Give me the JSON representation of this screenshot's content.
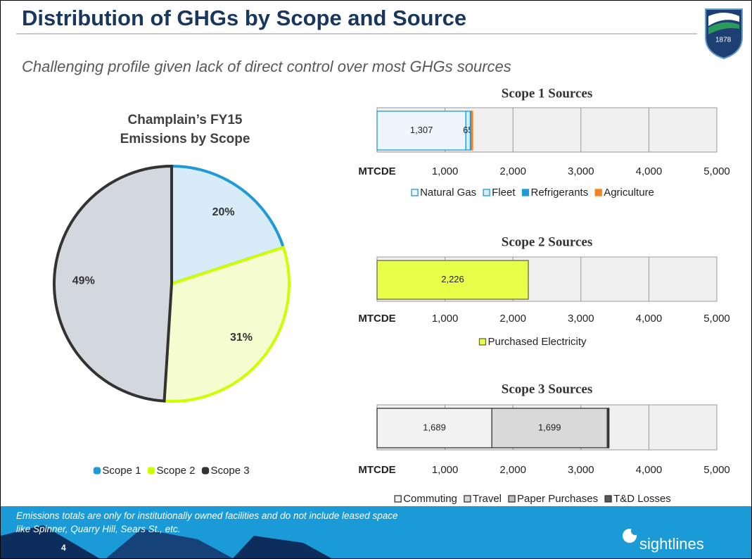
{
  "slide": {
    "title": "Distribution of GHGs by Scope and Source",
    "subtitle": "Challenging profile given lack of direct control over most GHGs sources",
    "footnote": "Emissions totals are only for institutionally owned facilities and do not include leased space like Spinner, Quarry Hill, Sears St., etc.",
    "page": "4",
    "brand": "sightlines",
    "logo_year": "1878"
  },
  "chart_data": [
    {
      "type": "pie",
      "title": "Champlain’s FY15 Emissions by Scope",
      "categories": [
        "Scope 1",
        "Scope 2",
        "Scope 3"
      ],
      "values": [
        20,
        31,
        49
      ],
      "value_labels": [
        "20%",
        "31%",
        "49%"
      ],
      "colors": [
        "#d7ecf8",
        "#f5fdd0",
        "#d3d8df"
      ],
      "edge_colors": [
        "#1e9ad6",
        "#ccff00",
        "#333333"
      ],
      "legend": "bottom"
    },
    {
      "type": "bar",
      "orientation": "horizontal",
      "stacked": true,
      "title": "Scope 1 Sources",
      "series": [
        {
          "name": "Natural Gas",
          "color": "#eef6fb",
          "edge": "#1e9ad6",
          "values": [
            1307
          ],
          "value_labels": [
            "1,307"
          ]
        },
        {
          "name": "Fleet",
          "color": "#d7ecf8",
          "edge": "#1e9ad6",
          "values": [
            65
          ],
          "labels": true
        },
        {
          "name": "Refrigerants",
          "color": "#1e9ad6",
          "edge": "#1e9ad6",
          "values": [
            20
          ]
        },
        {
          "name": "Agriculture",
          "color": "#f58220",
          "edge": "#f58220",
          "values": [
            15
          ]
        }
      ],
      "xlim": [
        0,
        5000
      ],
      "xticks": [
        {
          "value": 0,
          "label": "MTCDE"
        },
        {
          "value": 1000,
          "label": "1,000"
        },
        {
          "value": 2000,
          "label": "2,000"
        },
        {
          "value": 3000,
          "label": "3,000"
        },
        {
          "value": 4000,
          "label": "4,000"
        },
        {
          "value": 5000,
          "label": "5,000"
        }
      ],
      "grid": true,
      "legend": "bottom"
    },
    {
      "type": "bar",
      "orientation": "horizontal",
      "stacked": true,
      "title": "Scope 2 Sources",
      "series": [
        {
          "name": "Purchased Electricity",
          "color": "#e8ff4a",
          "edge": "#6b6b3a",
          "values": [
            2226
          ],
          "value_labels": [
            "2,226"
          ]
        }
      ],
      "xlim": [
        0,
        5000
      ],
      "xticks": [
        {
          "value": 0,
          "label": "MTCDE"
        },
        {
          "value": 1000,
          "label": "1,000"
        },
        {
          "value": 2000,
          "label": "2,000"
        },
        {
          "value": 3000,
          "label": "3,000"
        },
        {
          "value": 4000,
          "label": "4,000"
        },
        {
          "value": 5000,
          "label": "5,000"
        }
      ],
      "grid": true,
      "legend": "bottom"
    },
    {
      "type": "bar",
      "orientation": "horizontal",
      "stacked": true,
      "title": "Scope 3 Sources",
      "series": [
        {
          "name": "Commuting",
          "color": "#f2f2f2",
          "edge": "#333333",
          "values": [
            1689
          ],
          "value_labels": [
            "1,689"
          ]
        },
        {
          "name": "Travel",
          "color": "#d9d9d9",
          "edge": "#333333",
          "values": [
            1699
          ],
          "value_labels": [
            "1,699"
          ]
        },
        {
          "name": "Paper Purchases",
          "color": "#bfbfbf",
          "edge": "#333333",
          "values": [
            15
          ]
        },
        {
          "name": "T&D Losses",
          "color": "#595959",
          "edge": "#333333",
          "values": [
            10
          ]
        }
      ],
      "xlim": [
        0,
        5000
      ],
      "xticks": [
        {
          "value": 0,
          "label": "MTCDE"
        },
        {
          "value": 1000,
          "label": "1,000"
        },
        {
          "value": 2000,
          "label": "2,000"
        },
        {
          "value": 3000,
          "label": "3,000"
        },
        {
          "value": 4000,
          "label": "4,000"
        },
        {
          "value": 5000,
          "label": "5,000"
        }
      ],
      "grid": true,
      "legend": "bottom"
    }
  ]
}
